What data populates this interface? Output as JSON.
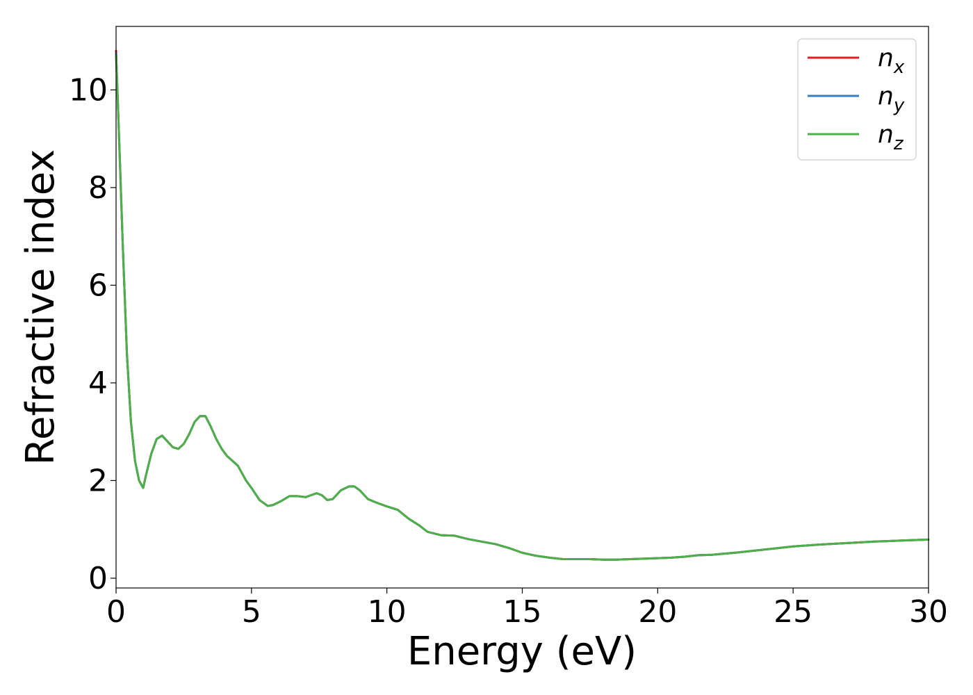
{
  "chart_data": {
    "type": "line",
    "xlabel": "Energy (eV)",
    "ylabel": "Refractive index",
    "xlim": [
      0,
      30
    ],
    "ylim": [
      -0.2,
      11.3
    ],
    "xticks": [
      0,
      5,
      10,
      15,
      20,
      25,
      30
    ],
    "yticks": [
      0,
      2,
      4,
      6,
      8,
      10
    ],
    "grid": false,
    "legend_position": "top-right",
    "x": [
      0,
      0.1,
      0.25,
      0.4,
      0.55,
      0.7,
      0.85,
      1.0,
      1.1,
      1.3,
      1.5,
      1.7,
      1.9,
      2.1,
      2.3,
      2.5,
      2.7,
      2.9,
      3.1,
      3.3,
      3.5,
      3.7,
      3.9,
      4.1,
      4.5,
      4.8,
      5.0,
      5.3,
      5.6,
      5.8,
      6.1,
      6.4,
      6.7,
      7.0,
      7.2,
      7.4,
      7.6,
      7.8,
      8.0,
      8.3,
      8.6,
      8.8,
      9.0,
      9.3,
      9.6,
      10.0,
      10.4,
      10.8,
      11.2,
      11.5,
      12.0,
      12.5,
      13.0,
      13.5,
      14.0,
      14.5,
      15.0,
      15.5,
      16.0,
      16.5,
      17.0,
      17.5,
      18.0,
      18.5,
      19.0,
      20.0,
      20.5,
      21.0,
      21.5,
      22.0,
      23.0,
      24.0,
      25.0,
      26.0,
      27.0,
      28.0,
      29.0,
      30.0
    ],
    "series": [
      {
        "name": "n_x",
        "color": "#e41a1c",
        "values": [
          10.8,
          9.2,
          6.8,
          4.6,
          3.2,
          2.4,
          2.0,
          1.85,
          2.1,
          2.55,
          2.85,
          2.92,
          2.8,
          2.68,
          2.65,
          2.75,
          2.95,
          3.2,
          3.32,
          3.32,
          3.1,
          2.85,
          2.65,
          2.5,
          2.3,
          2.0,
          1.85,
          1.6,
          1.48,
          1.5,
          1.58,
          1.68,
          1.68,
          1.66,
          1.7,
          1.74,
          1.7,
          1.6,
          1.62,
          1.8,
          1.88,
          1.88,
          1.8,
          1.62,
          1.55,
          1.47,
          1.4,
          1.22,
          1.08,
          0.95,
          0.88,
          0.87,
          0.8,
          0.75,
          0.7,
          0.62,
          0.52,
          0.46,
          0.42,
          0.39,
          0.39,
          0.39,
          0.38,
          0.38,
          0.39,
          0.41,
          0.42,
          0.44,
          0.47,
          0.48,
          0.53,
          0.59,
          0.65,
          0.69,
          0.72,
          0.75,
          0.77,
          0.79
        ]
      },
      {
        "name": "n_y",
        "color": "#377eb8",
        "values": [
          10.75,
          9.2,
          6.8,
          4.6,
          3.2,
          2.4,
          2.0,
          1.85,
          2.1,
          2.55,
          2.85,
          2.92,
          2.8,
          2.68,
          2.65,
          2.75,
          2.95,
          3.2,
          3.32,
          3.32,
          3.1,
          2.85,
          2.65,
          2.5,
          2.3,
          2.0,
          1.85,
          1.6,
          1.48,
          1.5,
          1.58,
          1.68,
          1.68,
          1.66,
          1.7,
          1.74,
          1.7,
          1.6,
          1.62,
          1.8,
          1.88,
          1.88,
          1.8,
          1.62,
          1.55,
          1.47,
          1.4,
          1.22,
          1.08,
          0.95,
          0.88,
          0.87,
          0.8,
          0.75,
          0.7,
          0.62,
          0.52,
          0.46,
          0.42,
          0.39,
          0.39,
          0.39,
          0.38,
          0.38,
          0.39,
          0.41,
          0.42,
          0.44,
          0.47,
          0.48,
          0.53,
          0.59,
          0.65,
          0.69,
          0.72,
          0.75,
          0.77,
          0.79
        ]
      },
      {
        "name": "n_z",
        "color": "#4daf4a",
        "values": [
          10.7,
          9.2,
          6.8,
          4.6,
          3.2,
          2.4,
          2.0,
          1.85,
          2.1,
          2.55,
          2.85,
          2.92,
          2.8,
          2.68,
          2.65,
          2.75,
          2.95,
          3.2,
          3.32,
          3.32,
          3.1,
          2.85,
          2.65,
          2.5,
          2.3,
          2.0,
          1.85,
          1.6,
          1.48,
          1.5,
          1.58,
          1.68,
          1.68,
          1.66,
          1.7,
          1.74,
          1.7,
          1.6,
          1.62,
          1.8,
          1.88,
          1.88,
          1.8,
          1.62,
          1.55,
          1.47,
          1.4,
          1.22,
          1.08,
          0.95,
          0.88,
          0.87,
          0.8,
          0.75,
          0.7,
          0.62,
          0.52,
          0.46,
          0.42,
          0.39,
          0.39,
          0.39,
          0.38,
          0.38,
          0.39,
          0.41,
          0.42,
          0.44,
          0.47,
          0.48,
          0.53,
          0.59,
          0.65,
          0.69,
          0.72,
          0.75,
          0.77,
          0.79
        ]
      }
    ],
    "legend": [
      {
        "base": "n",
        "sub": "x"
      },
      {
        "base": "n",
        "sub": "y"
      },
      {
        "base": "n",
        "sub": "z"
      }
    ]
  }
}
